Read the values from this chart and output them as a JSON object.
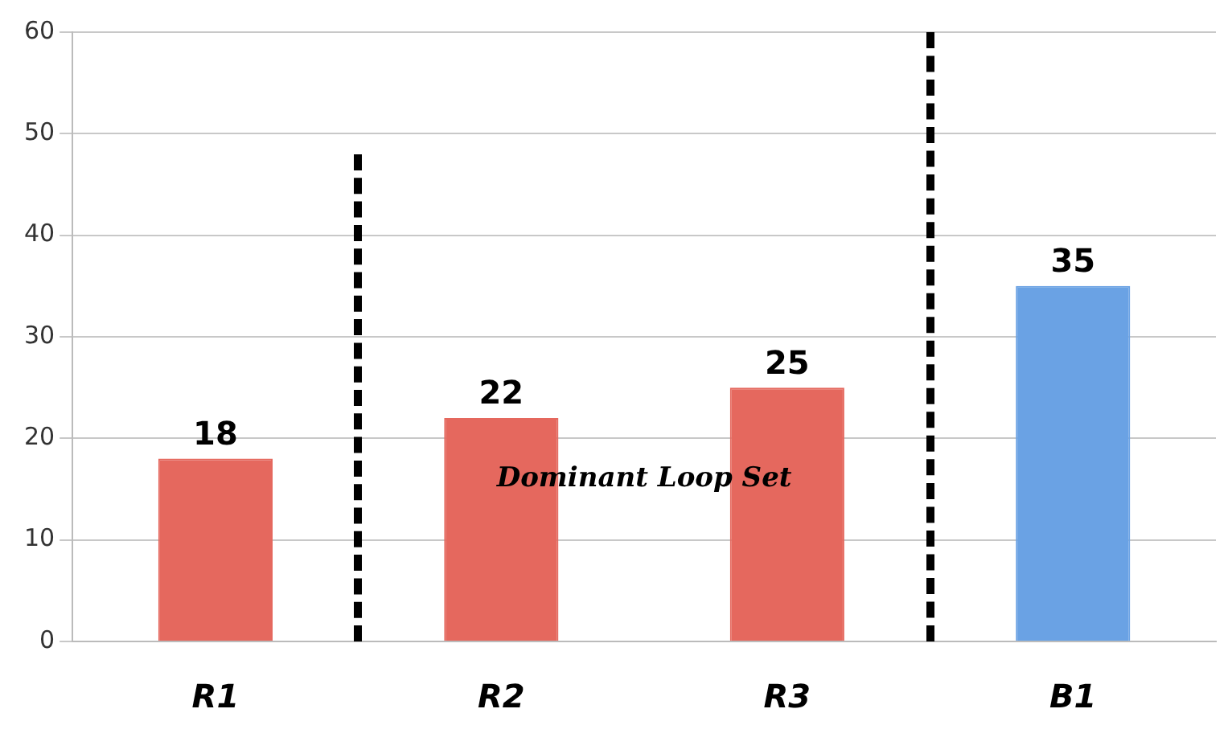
{
  "chart_data": {
    "type": "bar",
    "categories": [
      "R1",
      "R2",
      "R3",
      "B1"
    ],
    "values": [
      18,
      22,
      25,
      35
    ],
    "colors": [
      "#e5685e",
      "#e5685e",
      "#e5685e",
      "#6aa2e4"
    ],
    "ylim": [
      0,
      60
    ],
    "yticks": [
      0,
      10,
      20,
      30,
      40,
      50,
      60
    ],
    "grid": "y",
    "data_labels": true,
    "legend": false,
    "annotations": [
      "Dominant Loop Set"
    ]
  }
}
